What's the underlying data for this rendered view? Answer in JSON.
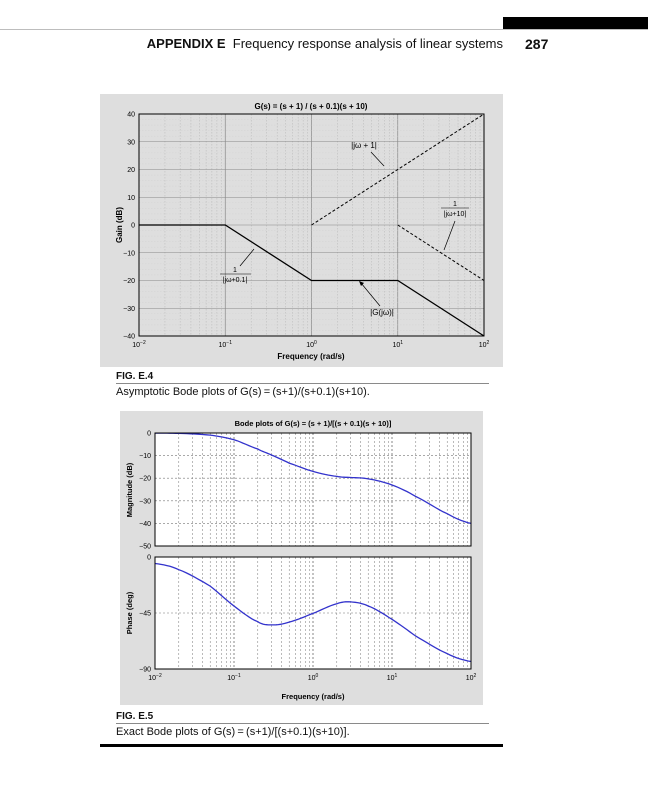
{
  "header": {
    "appendix": "APPENDIX E",
    "title": "Frequency response analysis of linear systems",
    "page_number": "287"
  },
  "fig_e4": {
    "label": "FIG. E.4",
    "caption": "Asymptotic Bode plots of G(s) = (s+1)/(s+0.1)(s+10).",
    "annotations": {
      "jw1": "|jω + 1|",
      "jw10_num": "1",
      "jw10_den": "|jω+10|",
      "jw01_num": "1",
      "jw01_den": "|jω+0.1|",
      "gjw": "|G(jω)|"
    }
  },
  "fig_e5": {
    "label": "FIG. E.5",
    "caption": "Exact Bode plots of G(s) = (s+1)/[(s+0.1)(s+10)]."
  },
  "colors": {
    "exact_curve": "#3333cc",
    "panel": "#dedede"
  },
  "chart_data": [
    {
      "type": "line",
      "title": "G(s) = (s + 1) / (s + 0.1)(s + 10)",
      "xlabel": "Frequency (rad/s)",
      "ylabel": "Gain (dB)",
      "xscale": "log",
      "xlim": [
        0.01,
        100
      ],
      "ylim": [
        -40,
        40
      ],
      "yticks": [
        -40,
        -30,
        -20,
        -10,
        0,
        10,
        20,
        30,
        40
      ],
      "ytick_labels": [
        "−40",
        "−30",
        "−20",
        "−10",
        "0",
        "10",
        "20",
        "30",
        "40"
      ],
      "xticks": [
        0.01,
        0.1,
        1,
        10,
        100
      ],
      "xtick_labels": [
        {
          "base": "10",
          "exp": "−2"
        },
        {
          "base": "10",
          "exp": "−1"
        },
        {
          "base": "10",
          "exp": "0"
        },
        {
          "base": "10",
          "exp": "1"
        },
        {
          "base": "10",
          "exp": "2"
        }
      ],
      "grid": true,
      "series": [
        {
          "name": "|G(jω)|",
          "style": "solid",
          "x": [
            0.01,
            0.1,
            1,
            10,
            100
          ],
          "y": [
            0,
            0,
            -20,
            -20,
            -40
          ]
        },
        {
          "name": "|jω + 1|",
          "style": "dashed",
          "x": [
            1,
            100
          ],
          "y": [
            0,
            40
          ]
        },
        {
          "name": "1/|jω+10|",
          "style": "dashed",
          "x": [
            10,
            100
          ],
          "y": [
            0,
            -20
          ]
        }
      ]
    },
    {
      "type": "line",
      "title": "Bode plots of G(s) = (s + 1)/[(s + 0.1)(s + 10)]",
      "xlabel": "Frequency (rad/s)",
      "ylabel": "Magnitude (dB)",
      "xscale": "log",
      "xlim": [
        0.01,
        100
      ],
      "ylim": [
        -50,
        0
      ],
      "yticks": [
        -50,
        -40,
        -30,
        -20,
        -10,
        0
      ],
      "ytick_labels": [
        "−50",
        "−40",
        "−30",
        "−20",
        "−10",
        "0"
      ],
      "grid": true,
      "series": [
        {
          "x": [
            0.01,
            0.02,
            0.05,
            0.1,
            0.2,
            0.3,
            0.5,
            1,
            2,
            3,
            5,
            10,
            20,
            50,
            100
          ],
          "y": [
            -0.04,
            -0.17,
            -0.94,
            -3.0,
            -7.1,
            -9.8,
            -13.3,
            -17.0,
            -19.2,
            -19.7,
            -20.3,
            -23.0,
            -28.1,
            -35.7,
            -40.0
          ]
        }
      ]
    },
    {
      "type": "line",
      "xlabel": "Frequency (rad/s)",
      "ylabel": "Phase (deg)",
      "xscale": "log",
      "xlim": [
        0.01,
        100
      ],
      "ylim": [
        -90,
        0
      ],
      "yticks": [
        -90,
        -45,
        0
      ],
      "ytick_labels": [
        "−90",
        "−45",
        "0"
      ],
      "xticks": [
        0.01,
        0.1,
        1,
        10,
        100
      ],
      "xtick_labels": [
        {
          "base": "10",
          "exp": "−2"
        },
        {
          "base": "10",
          "exp": "−1"
        },
        {
          "base": "10",
          "exp": "0"
        },
        {
          "base": "10",
          "exp": "1"
        },
        {
          "base": "10",
          "exp": "2"
        }
      ],
      "grid": true,
      "series": [
        {
          "x": [
            0.01,
            0.02,
            0.05,
            0.1,
            0.2,
            0.3,
            0.5,
            1,
            2,
            3,
            5,
            10,
            20,
            50,
            100
          ],
          "y": [
            -5.2,
            -10.2,
            -23.4,
            -39.4,
            -52.0,
            -54.6,
            -52.3,
            -45.3,
            -37.6,
            -36.1,
            -39.4,
            -50.1,
            -63.6,
            -77.6,
            -84.0
          ]
        }
      ]
    }
  ]
}
